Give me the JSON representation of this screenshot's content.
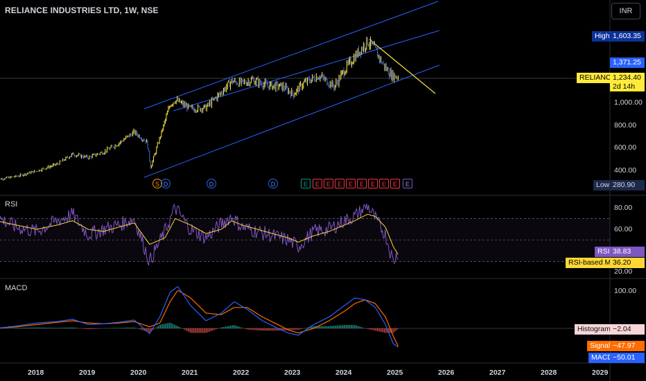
{
  "header": {
    "symbol_title": "RELIANCE INDUSTRIES LTD, 1W, NSE",
    "currency": "INR"
  },
  "price_axis": {
    "labels": [
      "1,000.00",
      "800.00",
      "600.00",
      "400.00"
    ],
    "high_label": "High",
    "high_value": "1,603.35",
    "low_label": "Low",
    "low_value": "280.90",
    "level_value": "1,371.25",
    "symbol_tag": "RELIANCE",
    "last_price": "1,234.40",
    "countdown": "2d 14h"
  },
  "rsi_pane": {
    "title": "RSI",
    "axis_labels": [
      "80.00",
      "60.00",
      "20.00"
    ],
    "rsi_label": "RSI",
    "rsi_value": "38.83",
    "ma_label": "RSI-based MA",
    "ma_value": "36.20"
  },
  "macd_pane": {
    "title": "MACD",
    "axis_labels": [
      "100.00"
    ],
    "hist_label": "Histogram",
    "hist_value": "−2.04",
    "signal_label": "Signal",
    "signal_value": "−47.97",
    "macd_label": "MACD",
    "macd_value": "−50.01"
  },
  "time_axis": {
    "labels": [
      "2018",
      "2019",
      "2020",
      "2021",
      "2022",
      "2023",
      "2024",
      "2025",
      "2026",
      "2027",
      "2028",
      "2029"
    ]
  },
  "events": [
    {
      "label": "S",
      "type": "split"
    },
    {
      "label": "D",
      "type": "dividend"
    },
    {
      "label": "D",
      "type": "dividend"
    },
    {
      "label": "D",
      "type": "dividend"
    },
    {
      "label": "E",
      "type": "earnings-beat"
    },
    {
      "label": "E",
      "type": "earnings-miss"
    },
    {
      "label": "E",
      "type": "earnings-miss"
    },
    {
      "label": "E",
      "type": "earnings-miss"
    },
    {
      "label": "E",
      "type": "earnings-miss"
    },
    {
      "label": "E",
      "type": "earnings-miss"
    },
    {
      "label": "E",
      "type": "earnings-miss"
    },
    {
      "label": "E",
      "type": "earnings-miss"
    },
    {
      "label": "E",
      "type": "earnings-miss"
    },
    {
      "label": "E",
      "type": "earnings-upcoming"
    }
  ],
  "colors": {
    "background": "#000000",
    "up": "#089981",
    "down": "#f23645",
    "channel": "#2962ff",
    "trendline": "#ffeb3b",
    "rsi": "#7e57c2",
    "rsi_ma": "#fdd835",
    "macd": "#2962ff",
    "signal": "#ff6d00",
    "last_price": "#ffeb3b",
    "high_tag": "#0c3299",
    "level_tag": "#2962ff",
    "low_tag": "#1e2a4a"
  },
  "chart_data": [
    {
      "type": "line",
      "name": "price",
      "x_range": [
        2017.2,
        2029.5
      ],
      "y_range_approx": [
        280.9,
        1603.35
      ],
      "x": [
        2017.2,
        2017.6,
        2018.0,
        2018.4,
        2018.7,
        2019.0,
        2019.3,
        2019.6,
        2019.9,
        2020.15,
        2020.22,
        2020.4,
        2020.6,
        2020.7,
        2021.0,
        2021.3,
        2021.6,
        2021.8,
        2022.0,
        2022.2,
        2022.5,
        2022.8,
        2023.0,
        2023.2,
        2023.5,
        2023.8,
        2024.0,
        2024.2,
        2024.45,
        2024.6,
        2024.75,
        2024.9,
        2025.05
      ],
      "y": [
        310,
        340,
        390,
        450,
        540,
        510,
        560,
        640,
        740,
        650,
        420,
        690,
        990,
        1030,
        950,
        960,
        1100,
        1200,
        1180,
        1210,
        1160,
        1150,
        1080,
        1180,
        1250,
        1150,
        1300,
        1420,
        1560,
        1480,
        1350,
        1260,
        1234.4
      ],
      "high": 1603.35,
      "low": 280.9,
      "last": 1234.4,
      "level": 1371.25
    },
    {
      "type": "line",
      "name": "RSI",
      "y_range": [
        20,
        80
      ],
      "x": [
        2017.2,
        2017.6,
        2018.0,
        2018.4,
        2018.7,
        2019.0,
        2019.3,
        2019.6,
        2019.9,
        2020.2,
        2020.5,
        2020.7,
        2021.0,
        2021.3,
        2021.6,
        2021.8,
        2022.0,
        2022.3,
        2022.6,
        2022.9,
        2023.1,
        2023.4,
        2023.7,
        2024.0,
        2024.2,
        2024.45,
        2024.6,
        2024.8,
        2024.95,
        2025.05
      ],
      "rsi": [
        72,
        62,
        58,
        68,
        74,
        55,
        60,
        64,
        70,
        30,
        58,
        80,
        60,
        52,
        65,
        72,
        62,
        58,
        54,
        50,
        44,
        58,
        60,
        68,
        72,
        82,
        70,
        55,
        30,
        38.83
      ],
      "ma": [
        68,
        64,
        60,
        64,
        68,
        60,
        58,
        62,
        66,
        46,
        52,
        70,
        64,
        56,
        60,
        68,
        64,
        60,
        56,
        52,
        48,
        54,
        58,
        64,
        68,
        74,
        72,
        62,
        44,
        36.2
      ]
    },
    {
      "type": "line",
      "name": "MACD",
      "x": [
        2017.2,
        2017.6,
        2018.0,
        2018.4,
        2018.7,
        2019.0,
        2019.3,
        2019.6,
        2019.9,
        2020.2,
        2020.4,
        2020.6,
        2020.75,
        2021.0,
        2021.3,
        2021.6,
        2021.85,
        2022.1,
        2022.4,
        2022.7,
        2022.9,
        2023.1,
        2023.4,
        2023.7,
        2024.0,
        2024.2,
        2024.4,
        2024.6,
        2024.8,
        2024.95,
        2025.05
      ],
      "macd": [
        0,
        6,
        14,
        18,
        24,
        10,
        12,
        16,
        22,
        -14,
        30,
        95,
        110,
        60,
        20,
        40,
        70,
        50,
        20,
        0,
        -12,
        -18,
        10,
        30,
        60,
        80,
        75,
        55,
        10,
        -40,
        -50.01
      ],
      "signal": [
        0,
        4,
        10,
        16,
        20,
        14,
        12,
        14,
        18,
        4,
        14,
        70,
        100,
        80,
        40,
        36,
        55,
        55,
        30,
        10,
        -4,
        -12,
        0,
        20,
        45,
        65,
        75,
        65,
        30,
        -20,
        -47.97
      ],
      "histogram_last": -2.04
    }
  ]
}
